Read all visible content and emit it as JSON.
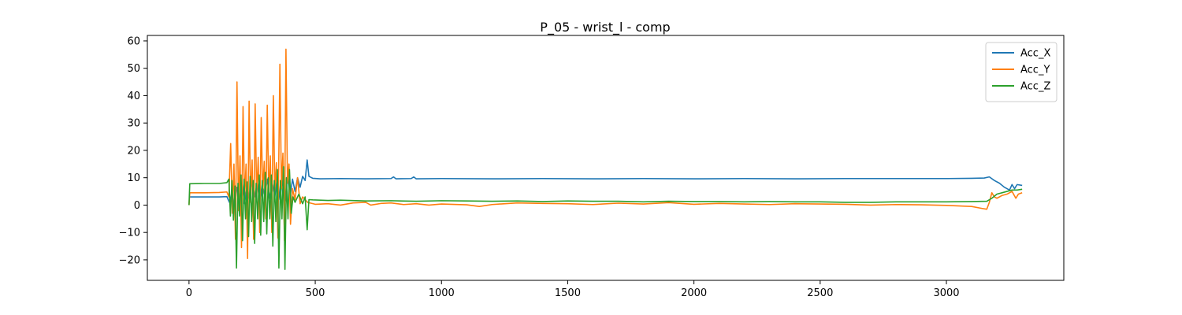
{
  "chart_data": {
    "type": "line",
    "title": "P_05 - wrist_l - comp",
    "xlabel": "",
    "ylabel": "",
    "xlim": [
      -165,
      3465
    ],
    "ylim": [
      -27.5,
      62.0
    ],
    "xticks": [
      0,
      500,
      1000,
      1500,
      2000,
      2500,
      3000
    ],
    "yticks": [
      -20,
      -10,
      0,
      10,
      20,
      30,
      40,
      50,
      60
    ],
    "grid": false,
    "legend_position": "top-right",
    "series": [
      {
        "name": "Acc_X",
        "color": "#1f77b4",
        "points": [
          [
            0,
            3.0
          ],
          [
            60,
            3.0
          ],
          [
            120,
            3.0
          ],
          [
            150,
            3.1
          ],
          [
            160,
            1.0
          ],
          [
            170,
            4.5
          ],
          [
            180,
            -1.0
          ],
          [
            190,
            6.5
          ],
          [
            200,
            2.0
          ],
          [
            210,
            8.0
          ],
          [
            220,
            0.5
          ],
          [
            230,
            7.0
          ],
          [
            240,
            2.0
          ],
          [
            250,
            9.0
          ],
          [
            260,
            3.0
          ],
          [
            270,
            8.0
          ],
          [
            280,
            1.5
          ],
          [
            290,
            7.5
          ],
          [
            300,
            3.5
          ],
          [
            310,
            9.5
          ],
          [
            320,
            2.5
          ],
          [
            330,
            8.0
          ],
          [
            340,
            3.0
          ],
          [
            350,
            10.5
          ],
          [
            360,
            2.0
          ],
          [
            370,
            9.0
          ],
          [
            380,
            1.5
          ],
          [
            390,
            11.0
          ],
          [
            400,
            3.0
          ],
          [
            410,
            9.5
          ],
          [
            420,
            5.0
          ],
          [
            430,
            10.0
          ],
          [
            440,
            6.5
          ],
          [
            450,
            10.5
          ],
          [
            460,
            9.0
          ],
          [
            468,
            16.5
          ],
          [
            475,
            10.5
          ],
          [
            490,
            9.8
          ],
          [
            520,
            9.6
          ],
          [
            600,
            9.7
          ],
          [
            700,
            9.6
          ],
          [
            800,
            9.7
          ],
          [
            810,
            10.3
          ],
          [
            820,
            9.6
          ],
          [
            880,
            9.7
          ],
          [
            890,
            10.3
          ],
          [
            900,
            9.6
          ],
          [
            1000,
            9.7
          ],
          [
            1200,
            9.6
          ],
          [
            1400,
            9.7
          ],
          [
            1600,
            9.6
          ],
          [
            1800,
            9.7
          ],
          [
            2000,
            9.6
          ],
          [
            2200,
            9.7
          ],
          [
            2400,
            9.6
          ],
          [
            2600,
            9.7
          ],
          [
            2800,
            9.7
          ],
          [
            3000,
            9.7
          ],
          [
            3100,
            9.8
          ],
          [
            3150,
            9.9
          ],
          [
            3170,
            10.3
          ],
          [
            3190,
            9.0
          ],
          [
            3210,
            8.0
          ],
          [
            3230,
            6.5
          ],
          [
            3250,
            5.5
          ],
          [
            3260,
            7.5
          ],
          [
            3270,
            6.0
          ],
          [
            3280,
            7.5
          ],
          [
            3300,
            7.2
          ]
        ]
      },
      {
        "name": "Acc_Y",
        "color": "#ff7f0e",
        "points": [
          [
            0,
            0.0
          ],
          [
            3,
            4.5
          ],
          [
            60,
            4.5
          ],
          [
            120,
            4.6
          ],
          [
            150,
            4.8
          ],
          [
            158,
            3.0
          ],
          [
            165,
            22.5
          ],
          [
            172,
            -3.0
          ],
          [
            178,
            15.0
          ],
          [
            184,
            -12.5
          ],
          [
            190,
            45.0
          ],
          [
            196,
            -2.0
          ],
          [
            202,
            18.0
          ],
          [
            208,
            -15.5
          ],
          [
            214,
            36.0
          ],
          [
            220,
            2.0
          ],
          [
            226,
            15.0
          ],
          [
            232,
            -19.5
          ],
          [
            238,
            38.0
          ],
          [
            244,
            1.0
          ],
          [
            250,
            16.5
          ],
          [
            256,
            -12.5
          ],
          [
            262,
            37.0
          ],
          [
            268,
            3.0
          ],
          [
            274,
            17.5
          ],
          [
            280,
            -10.0
          ],
          [
            286,
            32.0
          ],
          [
            292,
            4.0
          ],
          [
            298,
            16.0
          ],
          [
            304,
            -5.0
          ],
          [
            310,
            36.5
          ],
          [
            316,
            3.0
          ],
          [
            322,
            18.0
          ],
          [
            328,
            -10.0
          ],
          [
            334,
            40.0
          ],
          [
            340,
            5.0
          ],
          [
            346,
            15.5
          ],
          [
            352,
            -12.0
          ],
          [
            360,
            51.5
          ],
          [
            366,
            6.0
          ],
          [
            372,
            19.0
          ],
          [
            378,
            -13.0
          ],
          [
            384,
            57.0
          ],
          [
            390,
            8.0
          ],
          [
            396,
            15.0
          ],
          [
            402,
            -7.0
          ],
          [
            410,
            6.0
          ],
          [
            420,
            2.0
          ],
          [
            430,
            10.0
          ],
          [
            440,
            0.5
          ],
          [
            450,
            3.0
          ],
          [
            460,
            2.0
          ],
          [
            470,
            1.0
          ],
          [
            500,
            0.3
          ],
          [
            550,
            0.5
          ],
          [
            600,
            0.0
          ],
          [
            650,
            0.8
          ],
          [
            700,
            1.0
          ],
          [
            720,
            0.0
          ],
          [
            760,
            0.6
          ],
          [
            800,
            0.8
          ],
          [
            850,
            0.2
          ],
          [
            900,
            0.5
          ],
          [
            950,
            0.0
          ],
          [
            1000,
            0.4
          ],
          [
            1100,
            0.1
          ],
          [
            1150,
            -0.5
          ],
          [
            1200,
            0.2
          ],
          [
            1300,
            0.8
          ],
          [
            1400,
            0.6
          ],
          [
            1500,
            0.5
          ],
          [
            1600,
            0.2
          ],
          [
            1700,
            0.7
          ],
          [
            1800,
            0.4
          ],
          [
            1900,
            0.9
          ],
          [
            2000,
            0.3
          ],
          [
            2100,
            0.6
          ],
          [
            2200,
            0.4
          ],
          [
            2300,
            0.2
          ],
          [
            2400,
            0.5
          ],
          [
            2500,
            0.4
          ],
          [
            2600,
            0.3
          ],
          [
            2700,
            0.0
          ],
          [
            2800,
            0.2
          ],
          [
            2900,
            0.1
          ],
          [
            3000,
            -0.1
          ],
          [
            3100,
            -0.5
          ],
          [
            3140,
            -1.2
          ],
          [
            3160,
            -1.5
          ],
          [
            3170,
            1.0
          ],
          [
            3180,
            4.5
          ],
          [
            3190,
            3.0
          ],
          [
            3200,
            2.5
          ],
          [
            3220,
            3.5
          ],
          [
            3240,
            4.0
          ],
          [
            3260,
            5.0
          ],
          [
            3275,
            2.5
          ],
          [
            3285,
            4.0
          ],
          [
            3300,
            4.5
          ]
        ]
      },
      {
        "name": "Acc_Z",
        "color": "#2ca02c",
        "points": [
          [
            0,
            0.0
          ],
          [
            3,
            7.8
          ],
          [
            60,
            7.9
          ],
          [
            120,
            7.9
          ],
          [
            150,
            8.2
          ],
          [
            158,
            9.5
          ],
          [
            164,
            -4.0
          ],
          [
            170,
            9.0
          ],
          [
            176,
            -5.5
          ],
          [
            182,
            7.0
          ],
          [
            188,
            -23.0
          ],
          [
            194,
            8.0
          ],
          [
            200,
            -4.0
          ],
          [
            206,
            11.0
          ],
          [
            212,
            -13.0
          ],
          [
            218,
            9.5
          ],
          [
            224,
            -5.0
          ],
          [
            230,
            8.5
          ],
          [
            236,
            -11.5
          ],
          [
            242,
            10.5
          ],
          [
            248,
            -6.0
          ],
          [
            254,
            9.0
          ],
          [
            260,
            -14.0
          ],
          [
            266,
            8.0
          ],
          [
            272,
            -5.0
          ],
          [
            278,
            11.0
          ],
          [
            284,
            -11.0
          ],
          [
            290,
            9.0
          ],
          [
            296,
            -6.0
          ],
          [
            302,
            12.0
          ],
          [
            308,
            -10.5
          ],
          [
            314,
            10.0
          ],
          [
            320,
            -5.0
          ],
          [
            326,
            11.0
          ],
          [
            332,
            -15.0
          ],
          [
            338,
            9.0
          ],
          [
            344,
            -6.0
          ],
          [
            350,
            13.0
          ],
          [
            356,
            -23.0
          ],
          [
            362,
            9.0
          ],
          [
            368,
            -5.0
          ],
          [
            374,
            14.0
          ],
          [
            380,
            -23.5
          ],
          [
            386,
            10.0
          ],
          [
            392,
            -5.0
          ],
          [
            398,
            13.0
          ],
          [
            405,
            -3.0
          ],
          [
            412,
            3.0
          ],
          [
            420,
            1.0
          ],
          [
            435,
            4.0
          ],
          [
            450,
            0.5
          ],
          [
            460,
            3.0
          ],
          [
            468,
            -9.0
          ],
          [
            475,
            2.0
          ],
          [
            490,
            1.9
          ],
          [
            550,
            1.7
          ],
          [
            600,
            1.8
          ],
          [
            700,
            1.5
          ],
          [
            800,
            1.6
          ],
          [
            900,
            1.4
          ],
          [
            1000,
            1.6
          ],
          [
            1100,
            1.5
          ],
          [
            1200,
            1.4
          ],
          [
            1300,
            1.5
          ],
          [
            1400,
            1.3
          ],
          [
            1500,
            1.5
          ],
          [
            1600,
            1.4
          ],
          [
            1700,
            1.4
          ],
          [
            1800,
            1.2
          ],
          [
            1900,
            1.4
          ],
          [
            2000,
            1.3
          ],
          [
            2100,
            1.3
          ],
          [
            2200,
            1.2
          ],
          [
            2300,
            1.3
          ],
          [
            2400,
            1.2
          ],
          [
            2500,
            1.2
          ],
          [
            2600,
            1.0
          ],
          [
            2700,
            1.0
          ],
          [
            2800,
            1.2
          ],
          [
            2900,
            1.2
          ],
          [
            3000,
            1.2
          ],
          [
            3100,
            1.3
          ],
          [
            3160,
            1.4
          ],
          [
            3180,
            2.5
          ],
          [
            3200,
            4.0
          ],
          [
            3220,
            4.5
          ],
          [
            3240,
            5.0
          ],
          [
            3260,
            5.5
          ],
          [
            3280,
            5.5
          ],
          [
            3300,
            5.8
          ]
        ]
      }
    ]
  }
}
